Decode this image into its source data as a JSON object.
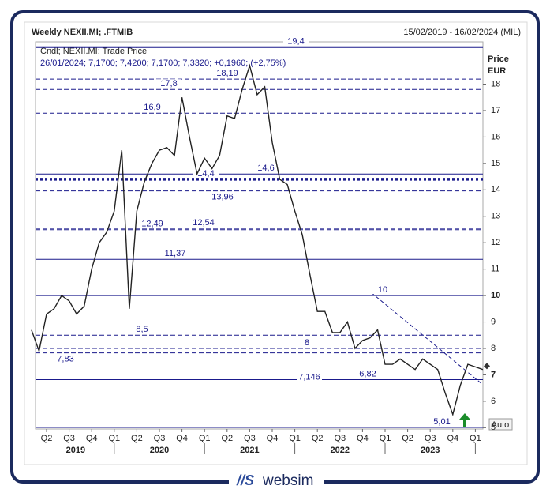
{
  "chart_data": {
    "type": "line",
    "title": "Weekly NEXII.MI; .FTMIB",
    "subtitle": "15/02/2019 - 16/02/2024 (MIL)",
    "info_line_1": "Cndl; NEXII.MI; Trade Price",
    "info_line_2": "26/01/2024; 7,1700; 7,4200; 7,1700; 7,3320; +0,1960; (+2,75%)",
    "y_axis_label": "Price\nEUR",
    "auto_button": "Auto",
    "logo": "websim",
    "categories": [
      null,
      null,
      "Q2",
      null,
      null,
      "Q3",
      null,
      null,
      "Q4",
      null,
      null,
      "Q1",
      null,
      null,
      "Q2",
      null,
      null,
      "Q3",
      null,
      null,
      "Q4",
      null,
      null,
      "Q1",
      null,
      null,
      "Q2",
      null,
      null,
      "Q3",
      null,
      null,
      "Q4",
      null,
      null,
      "Q1",
      null,
      null,
      "Q2",
      null,
      null,
      "Q3",
      null,
      null,
      "Q4",
      null,
      null,
      "Q1",
      null,
      null,
      "Q2",
      null,
      null,
      "Q3",
      null,
      null,
      "Q4",
      null,
      null,
      "Q1",
      null
    ],
    "years": [
      "2019",
      "2020",
      "2021",
      "2022",
      "2023"
    ],
    "series": [
      {
        "name": "NEXII.MI",
        "color": "#222222",
        "values": [
          8.7,
          7.9,
          9.3,
          9.5,
          10.0,
          9.8,
          9.3,
          9.6,
          11.0,
          12.0,
          12.4,
          13.2,
          15.5,
          9.5,
          13.2,
          14.3,
          15.0,
          15.5,
          15.6,
          15.3,
          17.5,
          16.0,
          14.6,
          15.2,
          14.8,
          15.3,
          16.8,
          16.7,
          17.8,
          18.7,
          17.6,
          17.9,
          15.8,
          14.4,
          14.2,
          13.2,
          12.3,
          10.8,
          9.4,
          9.4,
          8.6,
          8.6,
          9.0,
          8.0,
          8.3,
          8.4,
          8.7,
          7.4,
          7.4,
          7.6,
          7.4,
          7.2,
          7.6,
          7.4,
          7.2,
          6.3,
          5.5,
          6.6,
          7.4,
          7.3,
          7.2
        ]
      }
    ],
    "levels": [
      {
        "value": 19.4,
        "label": "19,4",
        "style": "solid"
      },
      {
        "value": 18.19,
        "label": "18,19",
        "style": "dashed"
      },
      {
        "value": 17.8,
        "label": "17,8",
        "style": "dashed"
      },
      {
        "value": 16.9,
        "label": "16,9",
        "style": "dashed"
      },
      {
        "value": 14.6,
        "label": "14,6",
        "style": "solid"
      },
      {
        "value": 14.4,
        "label": "14,4",
        "style": "dotted"
      },
      {
        "value": 13.96,
        "label": "13,96",
        "style": "dashed"
      },
      {
        "value": 12.54,
        "label": "12,54",
        "style": "dashed"
      },
      {
        "value": 12.49,
        "label": "12,49",
        "style": "dashed"
      },
      {
        "value": 11.37,
        "label": "11,37",
        "style": "solid"
      },
      {
        "value": 10,
        "label": "10",
        "style": "solid"
      },
      {
        "value": 8.5,
        "label": "8,5",
        "style": "dashed"
      },
      {
        "value": 8,
        "label": "8",
        "style": "dashed"
      },
      {
        "value": 7.83,
        "label": "7,83",
        "style": "dashed"
      },
      {
        "value": 7.146,
        "label": "7,146",
        "style": "dashed"
      },
      {
        "value": 6.82,
        "label": "6,82",
        "style": "solid"
      },
      {
        "value": 5.01,
        "label": "5,01",
        "style": "solid"
      }
    ],
    "last_price": 7.332,
    "ylim": [
      4.95,
      19.6
    ],
    "yticks": [
      5,
      6,
      7,
      8,
      9,
      10,
      11,
      12,
      13,
      14,
      15,
      16,
      17,
      18
    ],
    "bold_yticks": [
      7,
      10
    ]
  }
}
